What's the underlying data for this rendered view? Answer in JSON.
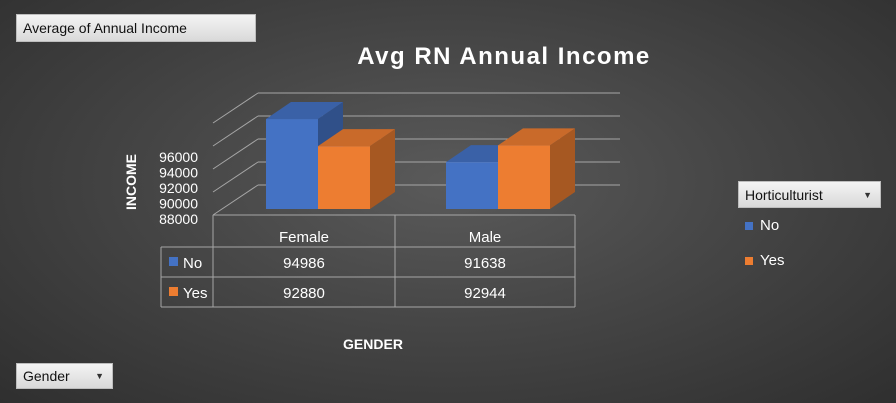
{
  "pivot": {
    "value_field": "Average of Annual Income",
    "axis_field": "Gender",
    "legend_field": "Horticulturist"
  },
  "colors": {
    "no": "#4472c4",
    "yes": "#ed7d31",
    "text": "#ffffff",
    "grid": "#a6a6a6"
  },
  "chart_data": {
    "type": "bar",
    "title": "Avg RN Annual Income",
    "xlabel": "GENDER",
    "ylabel": "INCOME",
    "categories": [
      "Female",
      "Male"
    ],
    "series": [
      {
        "name": "No",
        "values": [
          94986,
          91638
        ]
      },
      {
        "name": "Yes",
        "values": [
          92880,
          92944
        ]
      }
    ],
    "yticks": [
      "88000",
      "90000",
      "92000",
      "94000",
      "96000"
    ],
    "ylim": [
      88000,
      96000
    ],
    "legend_position": "right",
    "data_table": {
      "rows": [
        {
          "label": "No",
          "values": [
            "94986",
            "91638"
          ]
        },
        {
          "label": "Yes",
          "values": [
            "92880",
            "92944"
          ]
        }
      ]
    }
  }
}
